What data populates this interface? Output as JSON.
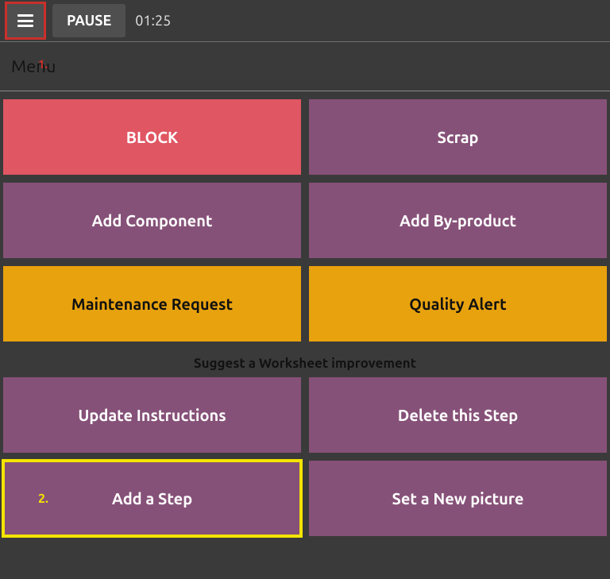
{
  "topbar": {
    "pause_label": "PAUSE",
    "timer": "01:25"
  },
  "annotation": {
    "one": "1.",
    "two": "2."
  },
  "band": {
    "menu_label": "Menu"
  },
  "tiles_main": {
    "block": {
      "label": "BLOCK",
      "type": "red"
    },
    "scrap": {
      "label": "Scrap",
      "type": "purple"
    },
    "add_component": {
      "label": "Add Component",
      "type": "purple"
    },
    "add_byproduct": {
      "label": "Add By-product",
      "type": "purple"
    },
    "maint_request": {
      "label": "Maintenance Request",
      "type": "orange"
    },
    "quality_alert": {
      "label": "Quality Alert",
      "type": "orange"
    }
  },
  "section": {
    "suggest_label": "Suggest a Worksheet improvement"
  },
  "tiles_suggest": {
    "update_instr": {
      "label": "Update Instructions",
      "type": "purple"
    },
    "delete_step": {
      "label": "Delete this Step",
      "type": "purple"
    },
    "add_step": {
      "label": "Add a Step",
      "type": "purple"
    },
    "set_picture": {
      "label": "Set a New picture",
      "type": "purple"
    }
  },
  "colors": {
    "purple": "#865178",
    "red": "#e05663",
    "orange": "#e8a20e",
    "bg": "#3a3a3a",
    "highlight_red": "#c9302c",
    "highlight_yellow": "#f4e400"
  }
}
